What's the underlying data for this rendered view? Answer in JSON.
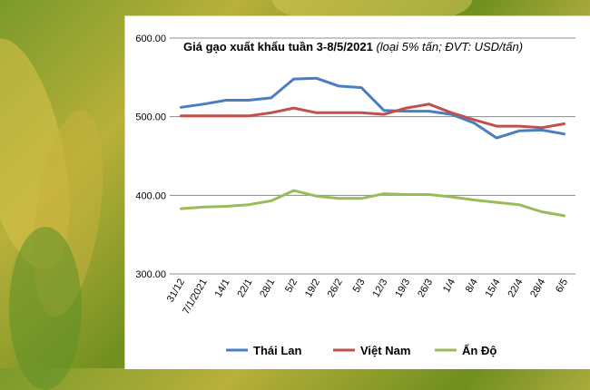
{
  "title": {
    "main": "Giá gạo xuất khẩu tuần 3-8/5/2021",
    "note": "(loại 5% tấn; ĐVT: USD/tấn)"
  },
  "colors": {
    "thai": "#4a7ec3",
    "vietnam": "#c0504d",
    "india": "#9bbb59",
    "grid": "#8c8c8c"
  },
  "chart_data": {
    "type": "line",
    "title": "Giá gạo xuất khẩu tuần 3-8/5/2021 (loại 5% tấn; ĐVT: USD/tấn)",
    "categories": [
      "31/12",
      "7/1/2021",
      "14/1",
      "22/1",
      "28/1",
      "5/2",
      "19/2",
      "26/2",
      "5/3",
      "12/3",
      "19/3",
      "26/3",
      "1/4",
      "8/4",
      "15/4",
      "22/4",
      "28/4",
      "6/5"
    ],
    "y_ticks": [
      "300.00",
      "400.00",
      "500.00",
      "600.00"
    ],
    "ylim": [
      300,
      600
    ],
    "grid": true,
    "legend_position": "bottom",
    "series": [
      {
        "name": "Thái Lan",
        "values": [
          512,
          516,
          521,
          521,
          524,
          548,
          549,
          539,
          537,
          508,
          507,
          507,
          503,
          492,
          473,
          482,
          483,
          478
        ]
      },
      {
        "name": "Việt Nam",
        "values": [
          501,
          501,
          501,
          501,
          505,
          511,
          505,
          505,
          505,
          503,
          511,
          516,
          505,
          496,
          488,
          488,
          486,
          491
        ]
      },
      {
        "name": "Ấn Độ",
        "values": [
          383,
          385,
          386,
          388,
          393,
          406,
          399,
          396,
          396,
          402,
          401,
          401,
          398,
          394,
          391,
          388,
          379,
          374
        ]
      }
    ]
  }
}
